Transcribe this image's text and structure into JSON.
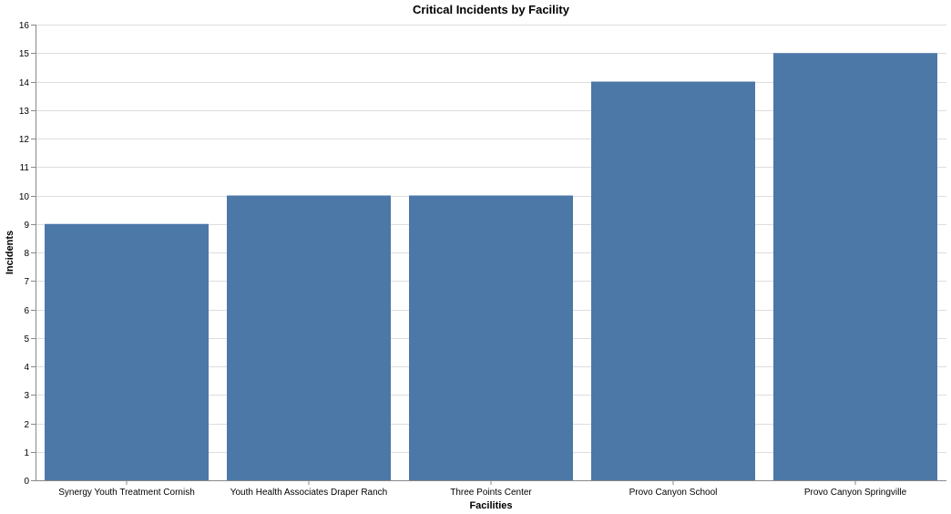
{
  "chart_data": {
    "type": "bar",
    "title": "Critical Incidents by Facility",
    "xlabel": "Facilities",
    "ylabel": "Incidents",
    "categories": [
      "Synergy Youth Treatment Cornish",
      "Youth Health Associates Draper Ranch",
      "Three Points Center",
      "Provo Canyon School",
      "Provo Canyon Springville"
    ],
    "values": [
      9,
      10,
      10,
      14,
      15
    ],
    "ylim": [
      0,
      16
    ],
    "yticks": [
      0,
      1,
      2,
      3,
      4,
      5,
      6,
      7,
      8,
      9,
      10,
      11,
      12,
      13,
      14,
      15,
      16
    ],
    "grid": true,
    "bar_color": "#4c78a8"
  }
}
